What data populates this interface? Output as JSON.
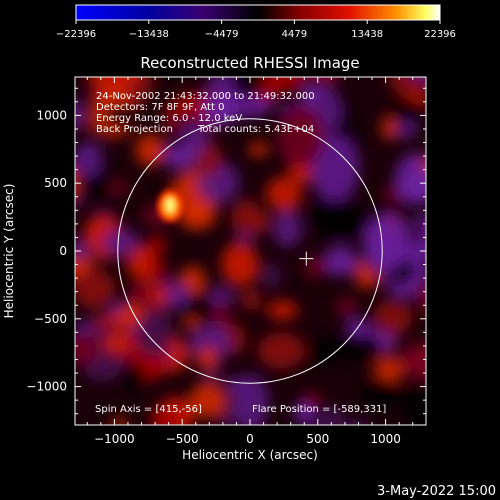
{
  "chart_data": {
    "type": "heatmap",
    "title": "Reconstructed RHESSI Image",
    "xlabel": "Heliocentric X (arcsec)",
    "ylabel": "Heliocentric Y (arcsec)",
    "xlim": [
      -1290,
      1290
    ],
    "ylim": [
      -1290,
      1290
    ],
    "x_ticks": [
      -1000,
      -500,
      0,
      500,
      1000
    ],
    "y_ticks": [
      -1000,
      -500,
      0,
      500,
      1000
    ],
    "x_tick_labels": [
      "−1000",
      "−500",
      "0",
      "500",
      "1000"
    ],
    "y_tick_labels": [
      "−1000",
      "−500",
      "0",
      "500",
      "1000"
    ],
    "colorbar": {
      "min": -22396,
      "max": 22396,
      "ticks": [
        -22396,
        -13438,
        -4479,
        4479,
        13438,
        22396
      ],
      "tick_labels": [
        "−22396",
        "−13438",
        "−4479",
        "4479",
        "13438",
        "22396"
      ]
    },
    "solar_disk_radius": 975,
    "flare_position": [
      -589,
      331
    ],
    "spin_axis": [
      415,
      -56
    ],
    "annotations": [
      "24-Nov-2002 21:43:32.000 to 21:49:32.000",
      "Detectors: 7F 8F 9F, Att 0",
      "Energy Range: 6.0 - 12.0 keV",
      "Back Projection",
      "Total counts: 5.43E+04"
    ],
    "footer_left": "Spin Axis = [415,-56]",
    "footer_right": "Flare Position = [-589,331]"
  },
  "timestamp": "3-May-2022 15:00"
}
